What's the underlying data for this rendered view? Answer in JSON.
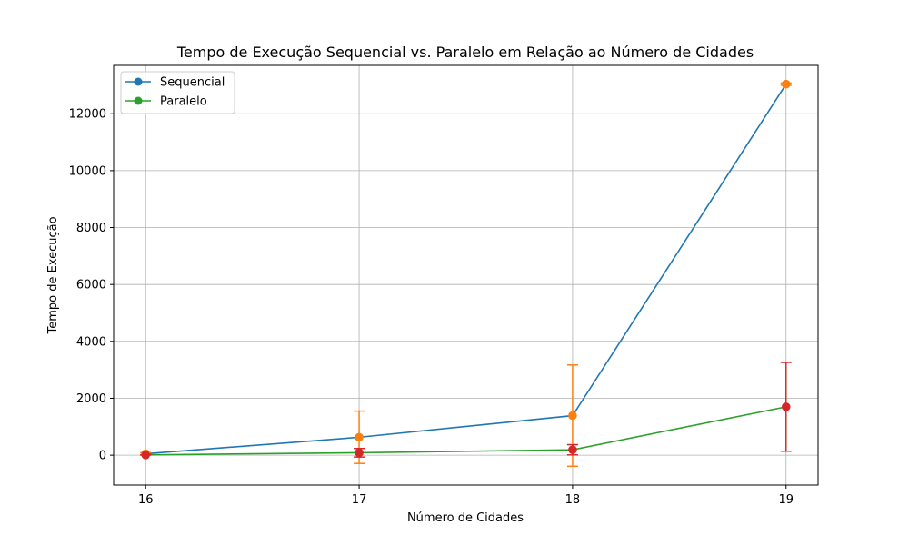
{
  "chart_data": {
    "type": "line",
    "title": "Tempo de Execução Sequencial vs. Paralelo em Relação ao Número de Cidades",
    "xlabel": "Número de Cidades",
    "ylabel": "Tempo de Execução",
    "x": [
      16,
      17,
      18,
      19
    ],
    "xlim": [
      15.85,
      19.15
    ],
    "ylim": [
      -1050,
      13700
    ],
    "yticks": [
      0,
      2000,
      4000,
      6000,
      8000,
      10000,
      12000
    ],
    "grid": true,
    "legend_position": "top-left",
    "series": [
      {
        "name": "Sequencial",
        "color": "#1f77b4",
        "marker_color": "#ff7f0e",
        "values": [
          50,
          630,
          1390,
          13040
        ],
        "error": [
          40,
          920,
          1780,
          40
        ]
      },
      {
        "name": "Paralelo",
        "color": "#2ca02c",
        "marker_color": "#d62728",
        "values": [
          10,
          85,
          190,
          1700
        ],
        "error": [
          8,
          150,
          180,
          1560
        ]
      }
    ]
  }
}
